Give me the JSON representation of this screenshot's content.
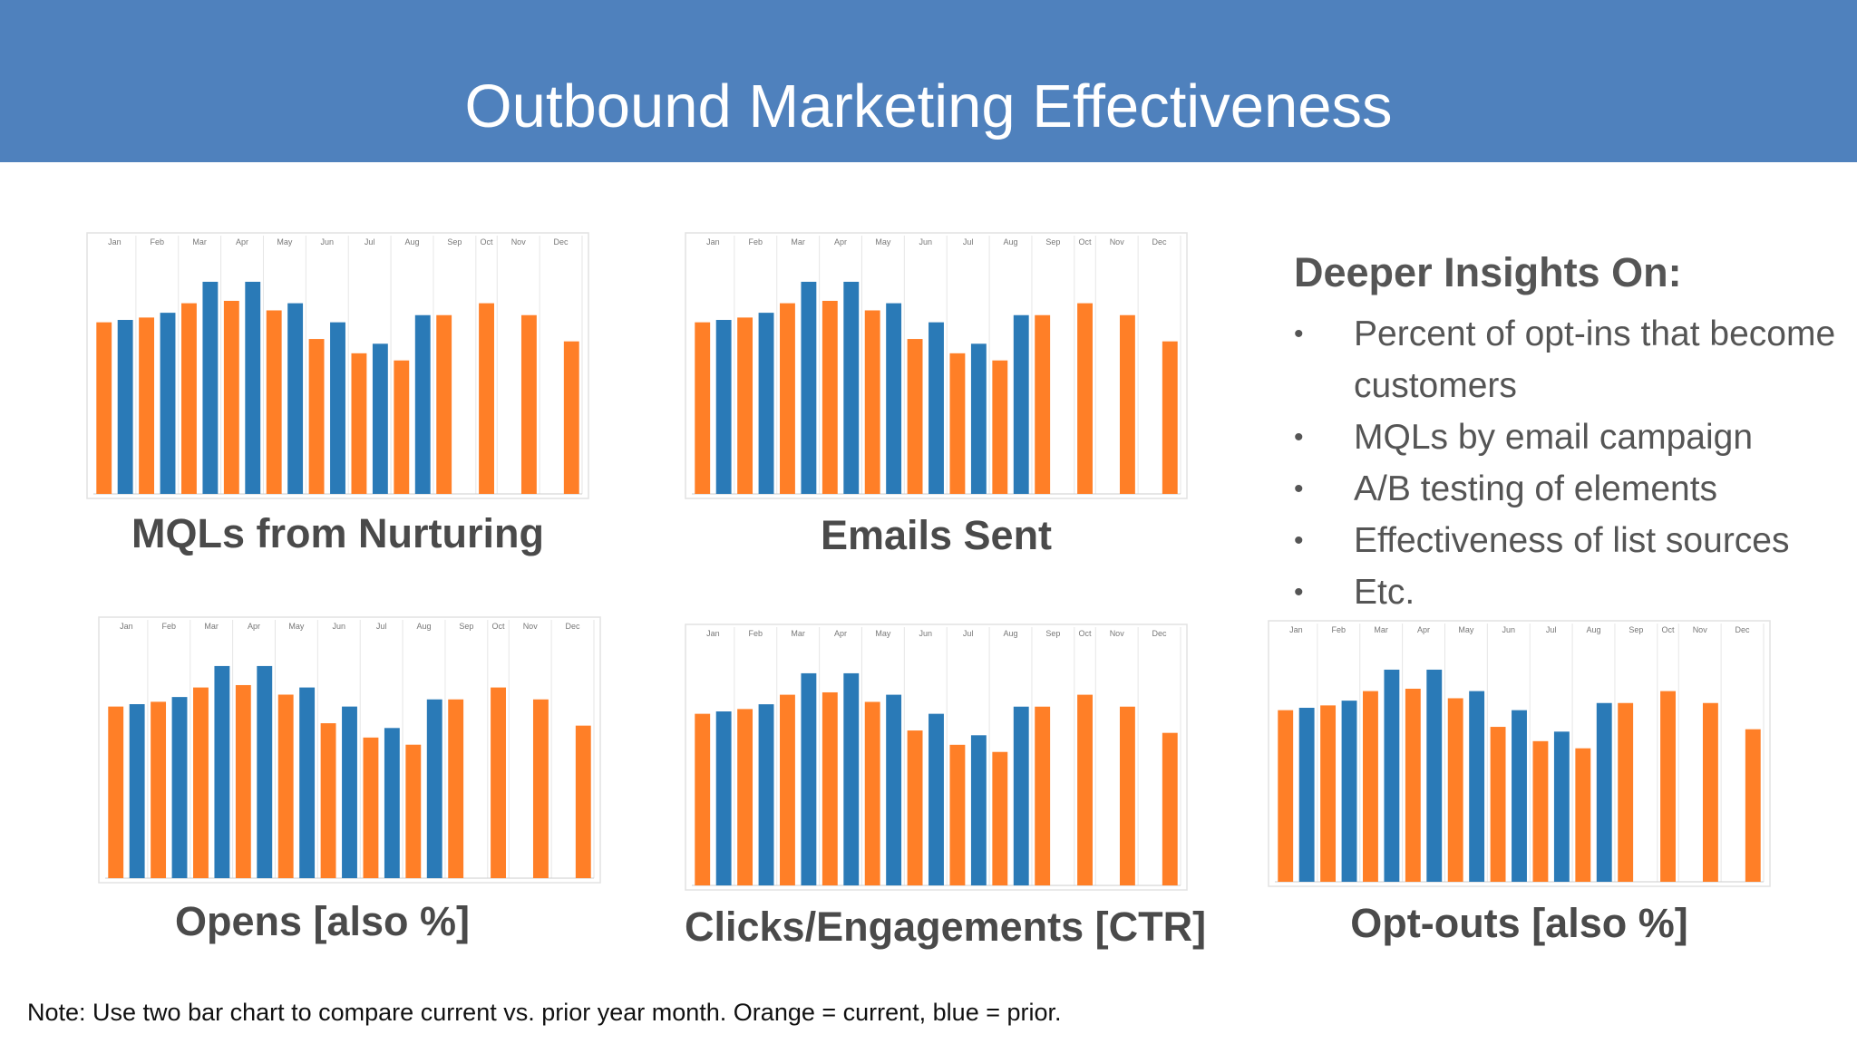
{
  "header": {
    "title": "Outbound Marketing Effectiveness"
  },
  "colors": {
    "current": "#ff7f27",
    "prior": "#2a7ab7",
    "header_bg": "#4f81bd"
  },
  "month_labels": [
    "Jan",
    "Feb",
    "Mar",
    "Apr",
    "May",
    "Jun",
    "Jul",
    "Aug",
    "Sep",
    "Oct",
    "Nov",
    "Dec"
  ],
  "charts": [
    {
      "id": "mqls",
      "title": "MQLs from Nurturing"
    },
    {
      "id": "emails",
      "title": "Emails Sent"
    },
    {
      "id": "opens",
      "title": "Opens [also %]"
    },
    {
      "id": "clicks",
      "title": "Clicks/Engagements [CTR]"
    },
    {
      "id": "optouts",
      "title": "Opt-outs [also %]"
    }
  ],
  "chart_data": [
    {
      "type": "bar",
      "title": "MQLs from Nurturing",
      "categories": [
        "Jan",
        "Feb",
        "Mar",
        "Apr",
        "May",
        "Jun",
        "Jul",
        "Aug",
        "Sep",
        "Oct",
        "Nov",
        "Dec"
      ],
      "series_colors": {
        "current": "#ff7f27",
        "prior": "#2a7ab7"
      },
      "bars": [
        {
          "c": "current",
          "v": 72
        },
        {
          "c": "prior",
          "v": 73
        },
        {
          "c": "current",
          "v": 74
        },
        {
          "c": "prior",
          "v": 76
        },
        {
          "c": "current",
          "v": 80
        },
        {
          "c": "prior",
          "v": 89
        },
        {
          "c": "current",
          "v": 81
        },
        {
          "c": "prior",
          "v": 89
        },
        {
          "c": "current",
          "v": 77
        },
        {
          "c": "prior",
          "v": 80
        },
        {
          "c": "current",
          "v": 65
        },
        {
          "c": "prior",
          "v": 72
        },
        {
          "c": "current",
          "v": 59
        },
        {
          "c": "prior",
          "v": 63
        },
        {
          "c": "current",
          "v": 56
        },
        {
          "c": "prior",
          "v": 75
        },
        {
          "c": "current",
          "v": 75
        },
        {
          "c": "prior",
          "v": 0
        },
        {
          "c": "current",
          "v": 80
        },
        {
          "c": "prior",
          "v": 0
        },
        {
          "c": "current",
          "v": 75
        },
        {
          "c": "prior",
          "v": 0
        },
        {
          "c": "current",
          "v": 64
        }
      ],
      "ylim": [
        0,
        100
      ]
    },
    {
      "type": "bar",
      "title": "Emails Sent",
      "categories": [
        "Jan",
        "Feb",
        "Mar",
        "Apr",
        "May",
        "Jun",
        "Jul",
        "Aug",
        "Sep",
        "Oct",
        "Nov",
        "Dec"
      ],
      "series_colors": {
        "current": "#ff7f27",
        "prior": "#2a7ab7"
      },
      "bars": [
        {
          "c": "current",
          "v": 72
        },
        {
          "c": "prior",
          "v": 73
        },
        {
          "c": "current",
          "v": 74
        },
        {
          "c": "prior",
          "v": 76
        },
        {
          "c": "current",
          "v": 80
        },
        {
          "c": "prior",
          "v": 89
        },
        {
          "c": "current",
          "v": 81
        },
        {
          "c": "prior",
          "v": 89
        },
        {
          "c": "current",
          "v": 77
        },
        {
          "c": "prior",
          "v": 80
        },
        {
          "c": "current",
          "v": 65
        },
        {
          "c": "prior",
          "v": 72
        },
        {
          "c": "current",
          "v": 59
        },
        {
          "c": "prior",
          "v": 63
        },
        {
          "c": "current",
          "v": 56
        },
        {
          "c": "prior",
          "v": 75
        },
        {
          "c": "current",
          "v": 75
        },
        {
          "c": "prior",
          "v": 0
        },
        {
          "c": "current",
          "v": 80
        },
        {
          "c": "prior",
          "v": 0
        },
        {
          "c": "current",
          "v": 75
        },
        {
          "c": "prior",
          "v": 0
        },
        {
          "c": "current",
          "v": 64
        }
      ],
      "ylim": [
        0,
        100
      ]
    },
    {
      "type": "bar",
      "title": "Opens [also %]",
      "categories": [
        "Jan",
        "Feb",
        "Mar",
        "Apr",
        "May",
        "Jun",
        "Jul",
        "Aug",
        "Sep",
        "Oct",
        "Nov",
        "Dec"
      ],
      "series_colors": {
        "current": "#ff7f27",
        "prior": "#2a7ab7"
      },
      "bars": [
        {
          "c": "current",
          "v": 72
        },
        {
          "c": "prior",
          "v": 73
        },
        {
          "c": "current",
          "v": 74
        },
        {
          "c": "prior",
          "v": 76
        },
        {
          "c": "current",
          "v": 80
        },
        {
          "c": "prior",
          "v": 89
        },
        {
          "c": "current",
          "v": 81
        },
        {
          "c": "prior",
          "v": 89
        },
        {
          "c": "current",
          "v": 77
        },
        {
          "c": "prior",
          "v": 80
        },
        {
          "c": "current",
          "v": 65
        },
        {
          "c": "prior",
          "v": 72
        },
        {
          "c": "current",
          "v": 59
        },
        {
          "c": "prior",
          "v": 63
        },
        {
          "c": "current",
          "v": 56
        },
        {
          "c": "prior",
          "v": 75
        },
        {
          "c": "current",
          "v": 75
        },
        {
          "c": "prior",
          "v": 0
        },
        {
          "c": "current",
          "v": 80
        },
        {
          "c": "prior",
          "v": 0
        },
        {
          "c": "current",
          "v": 75
        },
        {
          "c": "prior",
          "v": 0
        },
        {
          "c": "current",
          "v": 64
        }
      ],
      "ylim": [
        0,
        100
      ]
    },
    {
      "type": "bar",
      "title": "Clicks/Engagements [CTR]",
      "categories": [
        "Jan",
        "Feb",
        "Mar",
        "Apr",
        "May",
        "Jun",
        "Jul",
        "Aug",
        "Sep",
        "Oct",
        "Nov",
        "Dec"
      ],
      "series_colors": {
        "current": "#ff7f27",
        "prior": "#2a7ab7"
      },
      "bars": [
        {
          "c": "current",
          "v": 72
        },
        {
          "c": "prior",
          "v": 73
        },
        {
          "c": "current",
          "v": 74
        },
        {
          "c": "prior",
          "v": 76
        },
        {
          "c": "current",
          "v": 80
        },
        {
          "c": "prior",
          "v": 89
        },
        {
          "c": "current",
          "v": 81
        },
        {
          "c": "prior",
          "v": 89
        },
        {
          "c": "current",
          "v": 77
        },
        {
          "c": "prior",
          "v": 80
        },
        {
          "c": "current",
          "v": 65
        },
        {
          "c": "prior",
          "v": 72
        },
        {
          "c": "current",
          "v": 59
        },
        {
          "c": "prior",
          "v": 63
        },
        {
          "c": "current",
          "v": 56
        },
        {
          "c": "prior",
          "v": 75
        },
        {
          "c": "current",
          "v": 75
        },
        {
          "c": "prior",
          "v": 0
        },
        {
          "c": "current",
          "v": 80
        },
        {
          "c": "prior",
          "v": 0
        },
        {
          "c": "current",
          "v": 75
        },
        {
          "c": "prior",
          "v": 0
        },
        {
          "c": "current",
          "v": 64
        }
      ],
      "ylim": [
        0,
        100
      ]
    },
    {
      "type": "bar",
      "title": "Opt-outs [also %]",
      "categories": [
        "Jan",
        "Feb",
        "Mar",
        "Apr",
        "May",
        "Jun",
        "Jul",
        "Aug",
        "Sep",
        "Oct",
        "Nov",
        "Dec"
      ],
      "series_colors": {
        "current": "#ff7f27",
        "prior": "#2a7ab7"
      },
      "bars": [
        {
          "c": "current",
          "v": 72
        },
        {
          "c": "prior",
          "v": 73
        },
        {
          "c": "current",
          "v": 74
        },
        {
          "c": "prior",
          "v": 76
        },
        {
          "c": "current",
          "v": 80
        },
        {
          "c": "prior",
          "v": 89
        },
        {
          "c": "current",
          "v": 81
        },
        {
          "c": "prior",
          "v": 89
        },
        {
          "c": "current",
          "v": 77
        },
        {
          "c": "prior",
          "v": 80
        },
        {
          "c": "current",
          "v": 65
        },
        {
          "c": "prior",
          "v": 72
        },
        {
          "c": "current",
          "v": 59
        },
        {
          "c": "prior",
          "v": 63
        },
        {
          "c": "current",
          "v": 56
        },
        {
          "c": "prior",
          "v": 75
        },
        {
          "c": "current",
          "v": 75
        },
        {
          "c": "prior",
          "v": 0
        },
        {
          "c": "current",
          "v": 80
        },
        {
          "c": "prior",
          "v": 0
        },
        {
          "c": "current",
          "v": 75
        },
        {
          "c": "prior",
          "v": 0
        },
        {
          "c": "current",
          "v": 64
        }
      ],
      "ylim": [
        0,
        100
      ]
    }
  ],
  "insights": {
    "heading": "Deeper Insights On:",
    "bullet_glyph": "•",
    "items": [
      "Percent of opt-ins that become customers",
      "MQLs by email campaign",
      "A/B testing of elements",
      "Effectiveness of list sources",
      "Etc."
    ]
  },
  "note": "Note:  Use two bar chart to compare current vs. prior year month. Orange = current, blue = prior."
}
